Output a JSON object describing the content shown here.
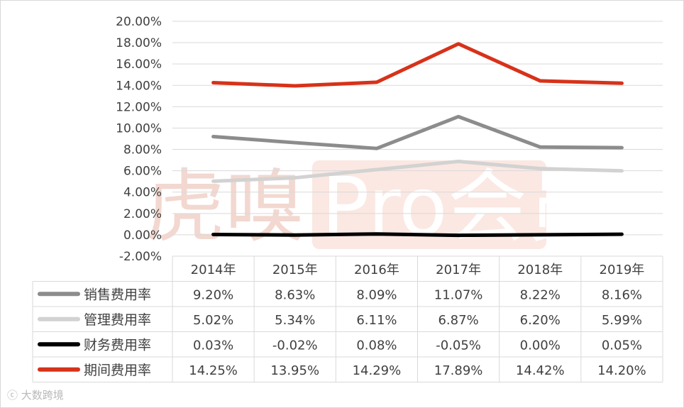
{
  "chart_data": {
    "type": "line",
    "title": "",
    "xlabel": "",
    "ylabel": "",
    "categories": [
      "2014年",
      "2015年",
      "2016年",
      "2017年",
      "2018年",
      "2019年"
    ],
    "ylim": [
      -0.02,
      0.2
    ],
    "ytick_step": 0.02,
    "y_tick_labels": [
      "-2.00%",
      "0.00%",
      "2.00%",
      "4.00%",
      "6.00%",
      "8.00%",
      "10.00%",
      "12.00%",
      "14.00%",
      "16.00%",
      "18.00%",
      "20.00%"
    ],
    "grid": true,
    "legend": "data-table-below",
    "series": [
      {
        "name": "销售费用率",
        "color": "#8c8c8c",
        "values": [
          0.092,
          0.0863,
          0.0809,
          0.1107,
          0.0822,
          0.0816
        ],
        "labels": [
          "9.20%",
          "8.63%",
          "8.09%",
          "11.07%",
          "8.22%",
          "8.16%"
        ]
      },
      {
        "name": "管理费用率",
        "color": "#d2d2d2",
        "values": [
          0.0502,
          0.0534,
          0.0611,
          0.0687,
          0.062,
          0.0599
        ],
        "labels": [
          "5.02%",
          "5.34%",
          "6.11%",
          "6.87%",
          "6.20%",
          "5.99%"
        ]
      },
      {
        "name": "财务费用率",
        "color": "#000000",
        "values": [
          0.0003,
          -0.0002,
          0.0008,
          -0.0005,
          0.0,
          0.0005
        ],
        "labels": [
          "0.03%",
          "-0.02%",
          "0.08%",
          "-0.05%",
          "0.00%",
          "0.05%"
        ]
      },
      {
        "name": "期间费用率",
        "color": "#d7321a",
        "values": [
          0.1425,
          0.1395,
          0.1429,
          0.1789,
          0.1442,
          0.142
        ],
        "labels": [
          "14.25%",
          "13.95%",
          "14.29%",
          "17.89%",
          "14.42%",
          "14.20%"
        ]
      }
    ]
  },
  "watermark": {
    "text": "虎嗅 Pro会员",
    "source": "大数跨境"
  }
}
